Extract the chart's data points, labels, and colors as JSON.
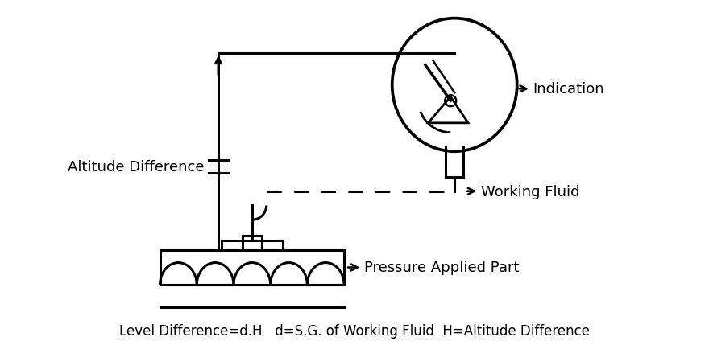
{
  "background_color": "#ffffff",
  "line_color": "#000000",
  "text_color": "#000000",
  "caption": "Level Difference=d.H   d=S.G. of Working Fluid  H=Altitude Difference",
  "caption_fontsize": 12,
  "label_fontsize": 13,
  "labels": {
    "indication": "Indication",
    "working_fluid": "Working Fluid",
    "altitude_difference": "Altitude Difference",
    "pressure_applied": "Pressure Applied Part"
  }
}
